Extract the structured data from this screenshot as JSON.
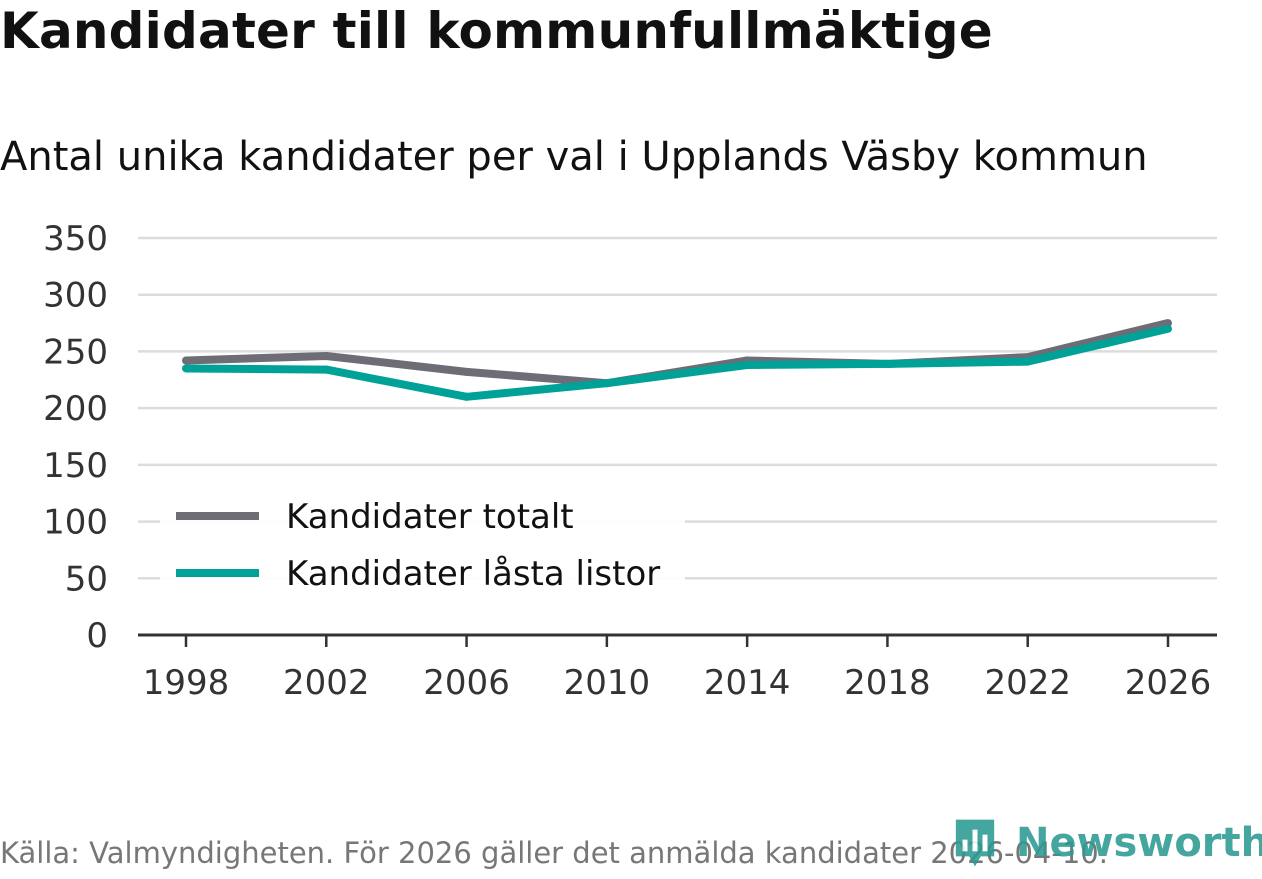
{
  "title": "Kandidater till kommunfullmäktige",
  "subtitle": "Antal unika kandidater per val i Upplands Väsby kommun",
  "footer": "Källa: Valmyndigheten. För 2026 gäller det anmälda kandidater 2026-04-10.",
  "brand": {
    "name": "Newsworthy",
    "icon": "bar-chart-speech-bubble-icon",
    "color": "#2c9a92"
  },
  "chart_data": {
    "type": "line",
    "title": "Antal unika kandidater per val i Upplands Väsby kommun",
    "xlabel": "",
    "ylabel": "",
    "x": [
      "1998",
      "2002",
      "2006",
      "2010",
      "2014",
      "2018",
      "2022",
      "2026"
    ],
    "ylim": [
      0,
      350
    ],
    "yticks": [
      "0",
      "50",
      "100",
      "150",
      "200",
      "250",
      "300",
      "350"
    ],
    "grid": true,
    "legend_position": "bottom-left",
    "series": [
      {
        "name": "Kandidater totalt",
        "color": "#6e6d76",
        "values": [
          242,
          246,
          232,
          222,
          242,
          239,
          245,
          275
        ]
      },
      {
        "name": "Kandidater låsta listor",
        "color": "#00a298",
        "values": [
          235,
          234,
          210,
          222,
          238,
          239,
          241,
          270
        ]
      }
    ]
  }
}
